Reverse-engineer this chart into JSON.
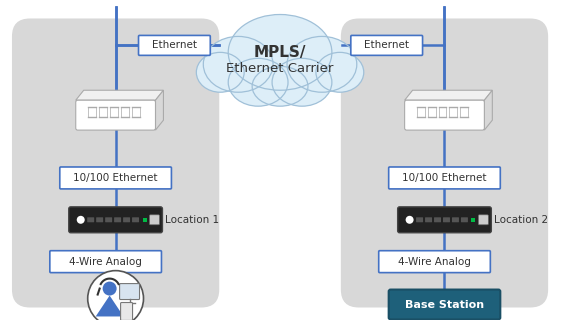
{
  "bg_color": "#ffffff",
  "panel_color": "#d8d8d8",
  "panel_edge_color": "#c0c0c0",
  "box_color": "#ffffff",
  "box_edge_color": "#4472c4",
  "line_color": "#4472c4",
  "cloud_color": "#ddeef8",
  "cloud_edge_color": "#a0c0d8",
  "text_color": "#333333",
  "base_station_color": "#1e607a",
  "cloud_line1": "MPLS/",
  "cloud_line2": "Ethernet Carrier",
  "ethernet_label": "Ethernet",
  "eth_label": "10/100 Ethernet",
  "analog_label": "4-Wire Analog",
  "loc1_label": "Location 1",
  "loc2_label": "Location 2",
  "base_label": "Base Station"
}
